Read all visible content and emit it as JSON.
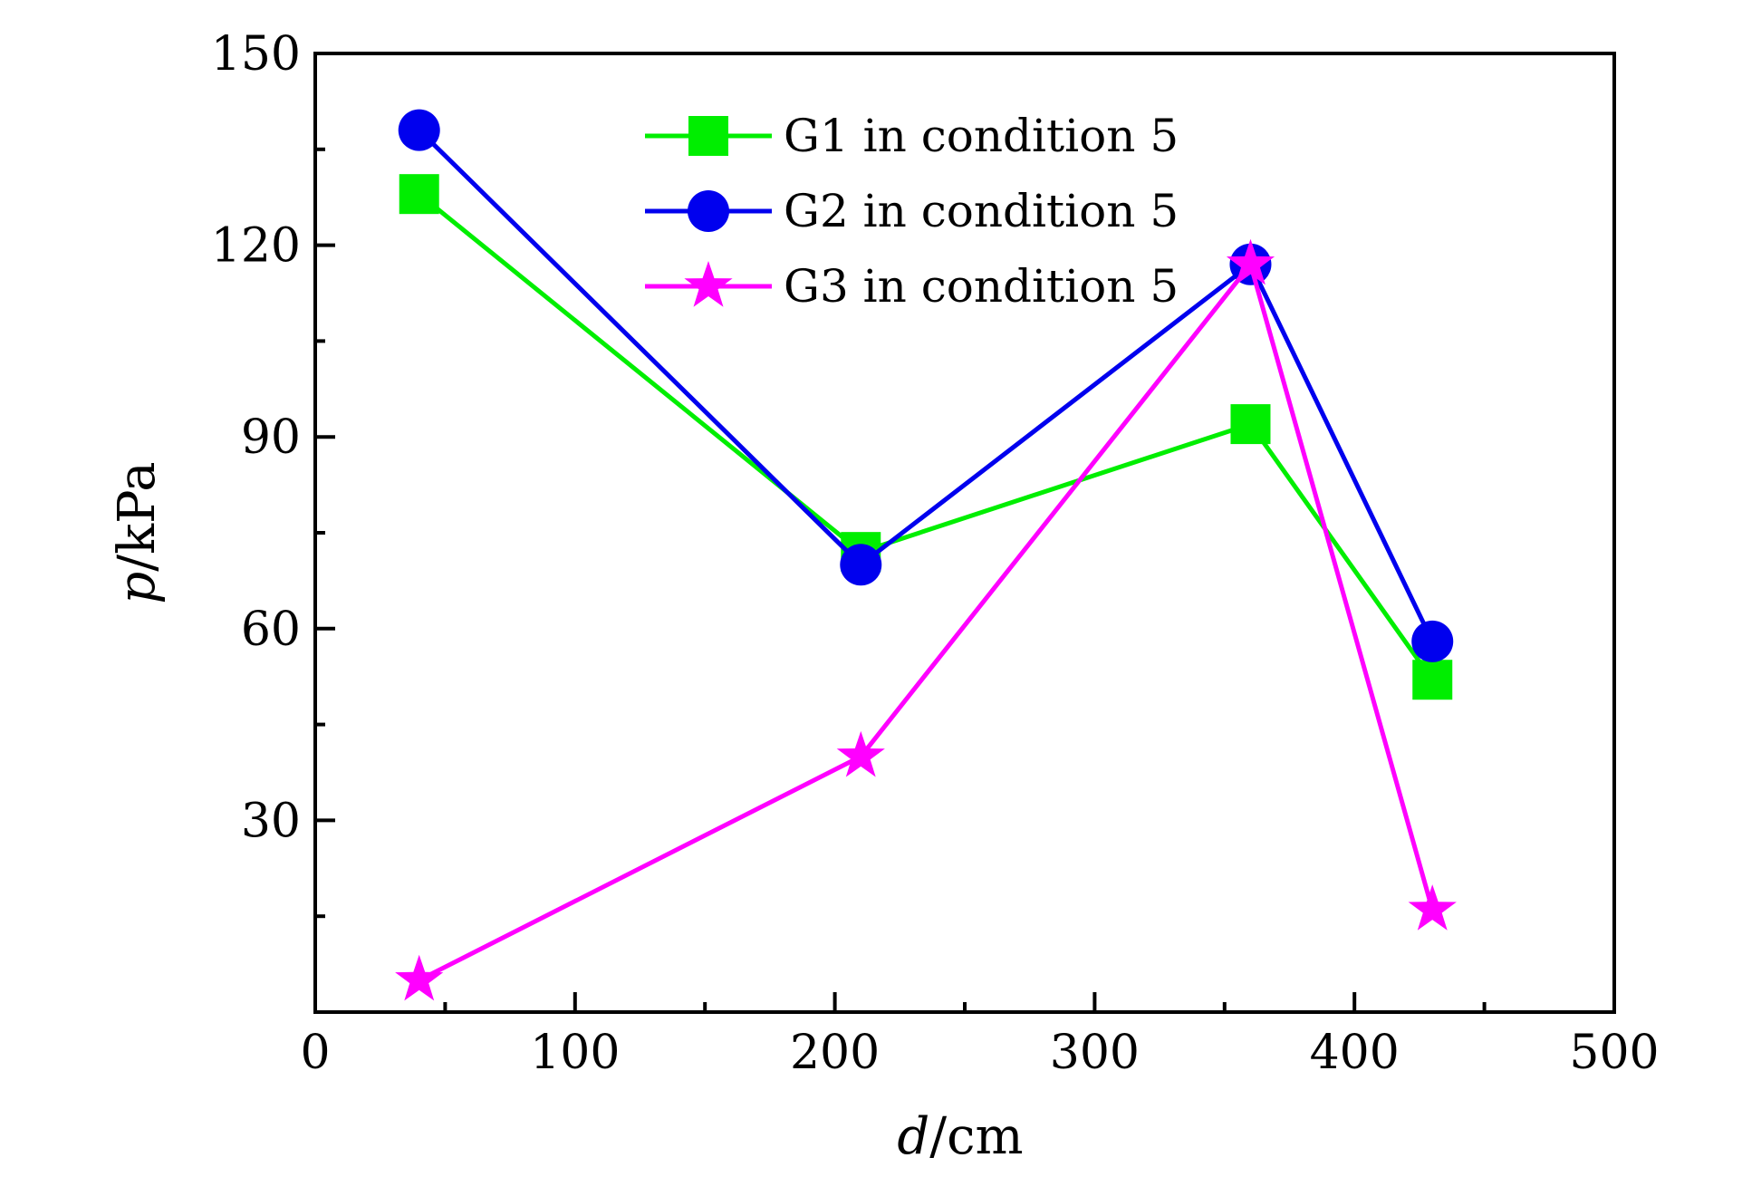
{
  "chart_data": {
    "type": "line",
    "title": "",
    "xlabel": {
      "symbol": "d",
      "unit": "/cm"
    },
    "ylabel": {
      "symbol": "p",
      "unit": "/kPa"
    },
    "xlim": [
      0,
      500
    ],
    "ylim": [
      0,
      150
    ],
    "xticks": [
      0,
      100,
      200,
      300,
      400,
      500
    ],
    "yticks": [
      30,
      60,
      90,
      120,
      150
    ],
    "grid": false,
    "legend_position": "top-center",
    "x": [
      40,
      210,
      360,
      430
    ],
    "series": [
      {
        "name": "G1 in condition 5",
        "values": [
          128,
          72,
          92,
          52
        ],
        "color": "#00ee00",
        "marker": "square"
      },
      {
        "name": "G2 in condition 5",
        "values": [
          138,
          70,
          117,
          58
        ],
        "color": "#0000ee",
        "marker": "circle"
      },
      {
        "name": "G3 in condition 5",
        "values": [
          5,
          40,
          117,
          16
        ],
        "color": "#ff00ff",
        "marker": "star"
      }
    ]
  }
}
